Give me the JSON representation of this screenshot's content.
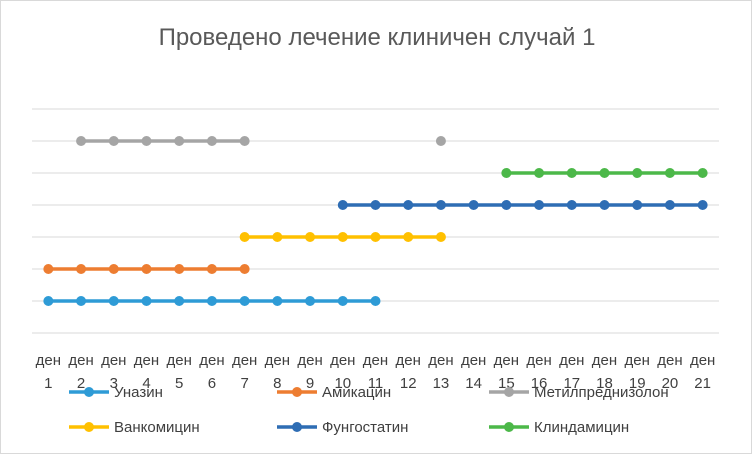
{
  "chart_data": {
    "type": "line",
    "title": "Проведено лечение клиничен случай 1",
    "xlabel": "",
    "ylabel": "",
    "categories": [
      [
        "ден",
        "1"
      ],
      [
        "ден",
        "2"
      ],
      [
        "ден",
        "3"
      ],
      [
        "ден",
        "4"
      ],
      [
        "ден",
        "5"
      ],
      [
        "ден",
        "6"
      ],
      [
        "ден",
        "7"
      ],
      [
        "ден",
        "8"
      ],
      [
        "ден",
        "9"
      ],
      [
        "ден",
        "10"
      ],
      [
        "ден",
        "11"
      ],
      [
        "ден",
        "12"
      ],
      [
        "ден",
        "13"
      ],
      [
        "ден",
        "14"
      ],
      [
        "ден",
        "15"
      ],
      [
        "ден",
        "16"
      ],
      [
        "ден",
        "17"
      ],
      [
        "ден",
        "18"
      ],
      [
        "ден",
        "19"
      ],
      [
        "ден",
        "20"
      ],
      [
        "ден",
        "21"
      ]
    ],
    "ylim": [
      0,
      7
    ],
    "grid": true,
    "legend_position": "bottom",
    "series": [
      {
        "name": "Уназин",
        "color": "#2E9BD6",
        "level": 1,
        "days": [
          1,
          2,
          3,
          4,
          5,
          6,
          7,
          8,
          9,
          10,
          11
        ]
      },
      {
        "name": "Амикацин",
        "color": "#ED7D31",
        "level": 2,
        "days": [
          1,
          2,
          3,
          4,
          5,
          6,
          7
        ]
      },
      {
        "name": "Метилпреднизолон",
        "color": "#A5A5A5",
        "level": 6,
        "days": [
          2,
          3,
          4,
          5,
          6,
          7,
          13
        ]
      },
      {
        "name": "Ванкомицин",
        "color": "#FFC000",
        "level": 3,
        "days": [
          7,
          8,
          9,
          10,
          11,
          12,
          13
        ]
      },
      {
        "name": "Фунгостатин",
        "color": "#2E6DB4",
        "level": 4,
        "days": [
          10,
          11,
          12,
          13,
          14,
          15,
          16,
          17,
          18,
          19,
          20,
          21
        ]
      },
      {
        "name": "Клиндамицин",
        "color": "#4CB849",
        "level": 5,
        "days": [
          15,
          16,
          17,
          18,
          19,
          20,
          21
        ]
      }
    ]
  }
}
